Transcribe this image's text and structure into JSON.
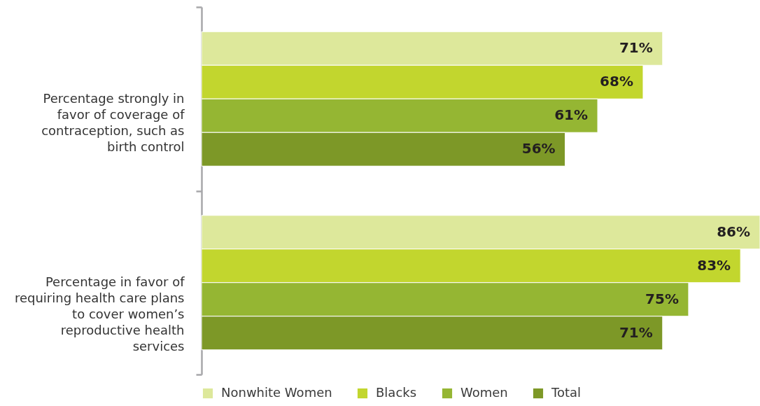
{
  "chart_data": {
    "type": "bar",
    "orientation": "horizontal",
    "categories": [
      "Percentage strongly in favor of coverage of contraception, such as birth control",
      "Percentage in favor of requiring health care plans to cover women’s reproductive health services"
    ],
    "series": [
      {
        "name": "Nonwhite Women",
        "color": "#dde89b",
        "values": [
          71,
          86
        ],
        "value_labels": [
          "71%",
          "86%"
        ]
      },
      {
        "name": "Blacks",
        "color": "#c2d62e",
        "values": [
          68,
          83
        ],
        "value_labels": [
          "68%",
          "83%"
        ]
      },
      {
        "name": "Women",
        "color": "#95b633",
        "values": [
          61,
          75
        ],
        "value_labels": [
          "61%",
          "75%"
        ]
      },
      {
        "name": "Total",
        "color": "#7d9827",
        "values": [
          56,
          71
        ],
        "value_labels": [
          "56%",
          "71%"
        ]
      }
    ],
    "xlim": [
      0,
      86
    ],
    "tick_labels": "y",
    "legend": "bottom"
  }
}
